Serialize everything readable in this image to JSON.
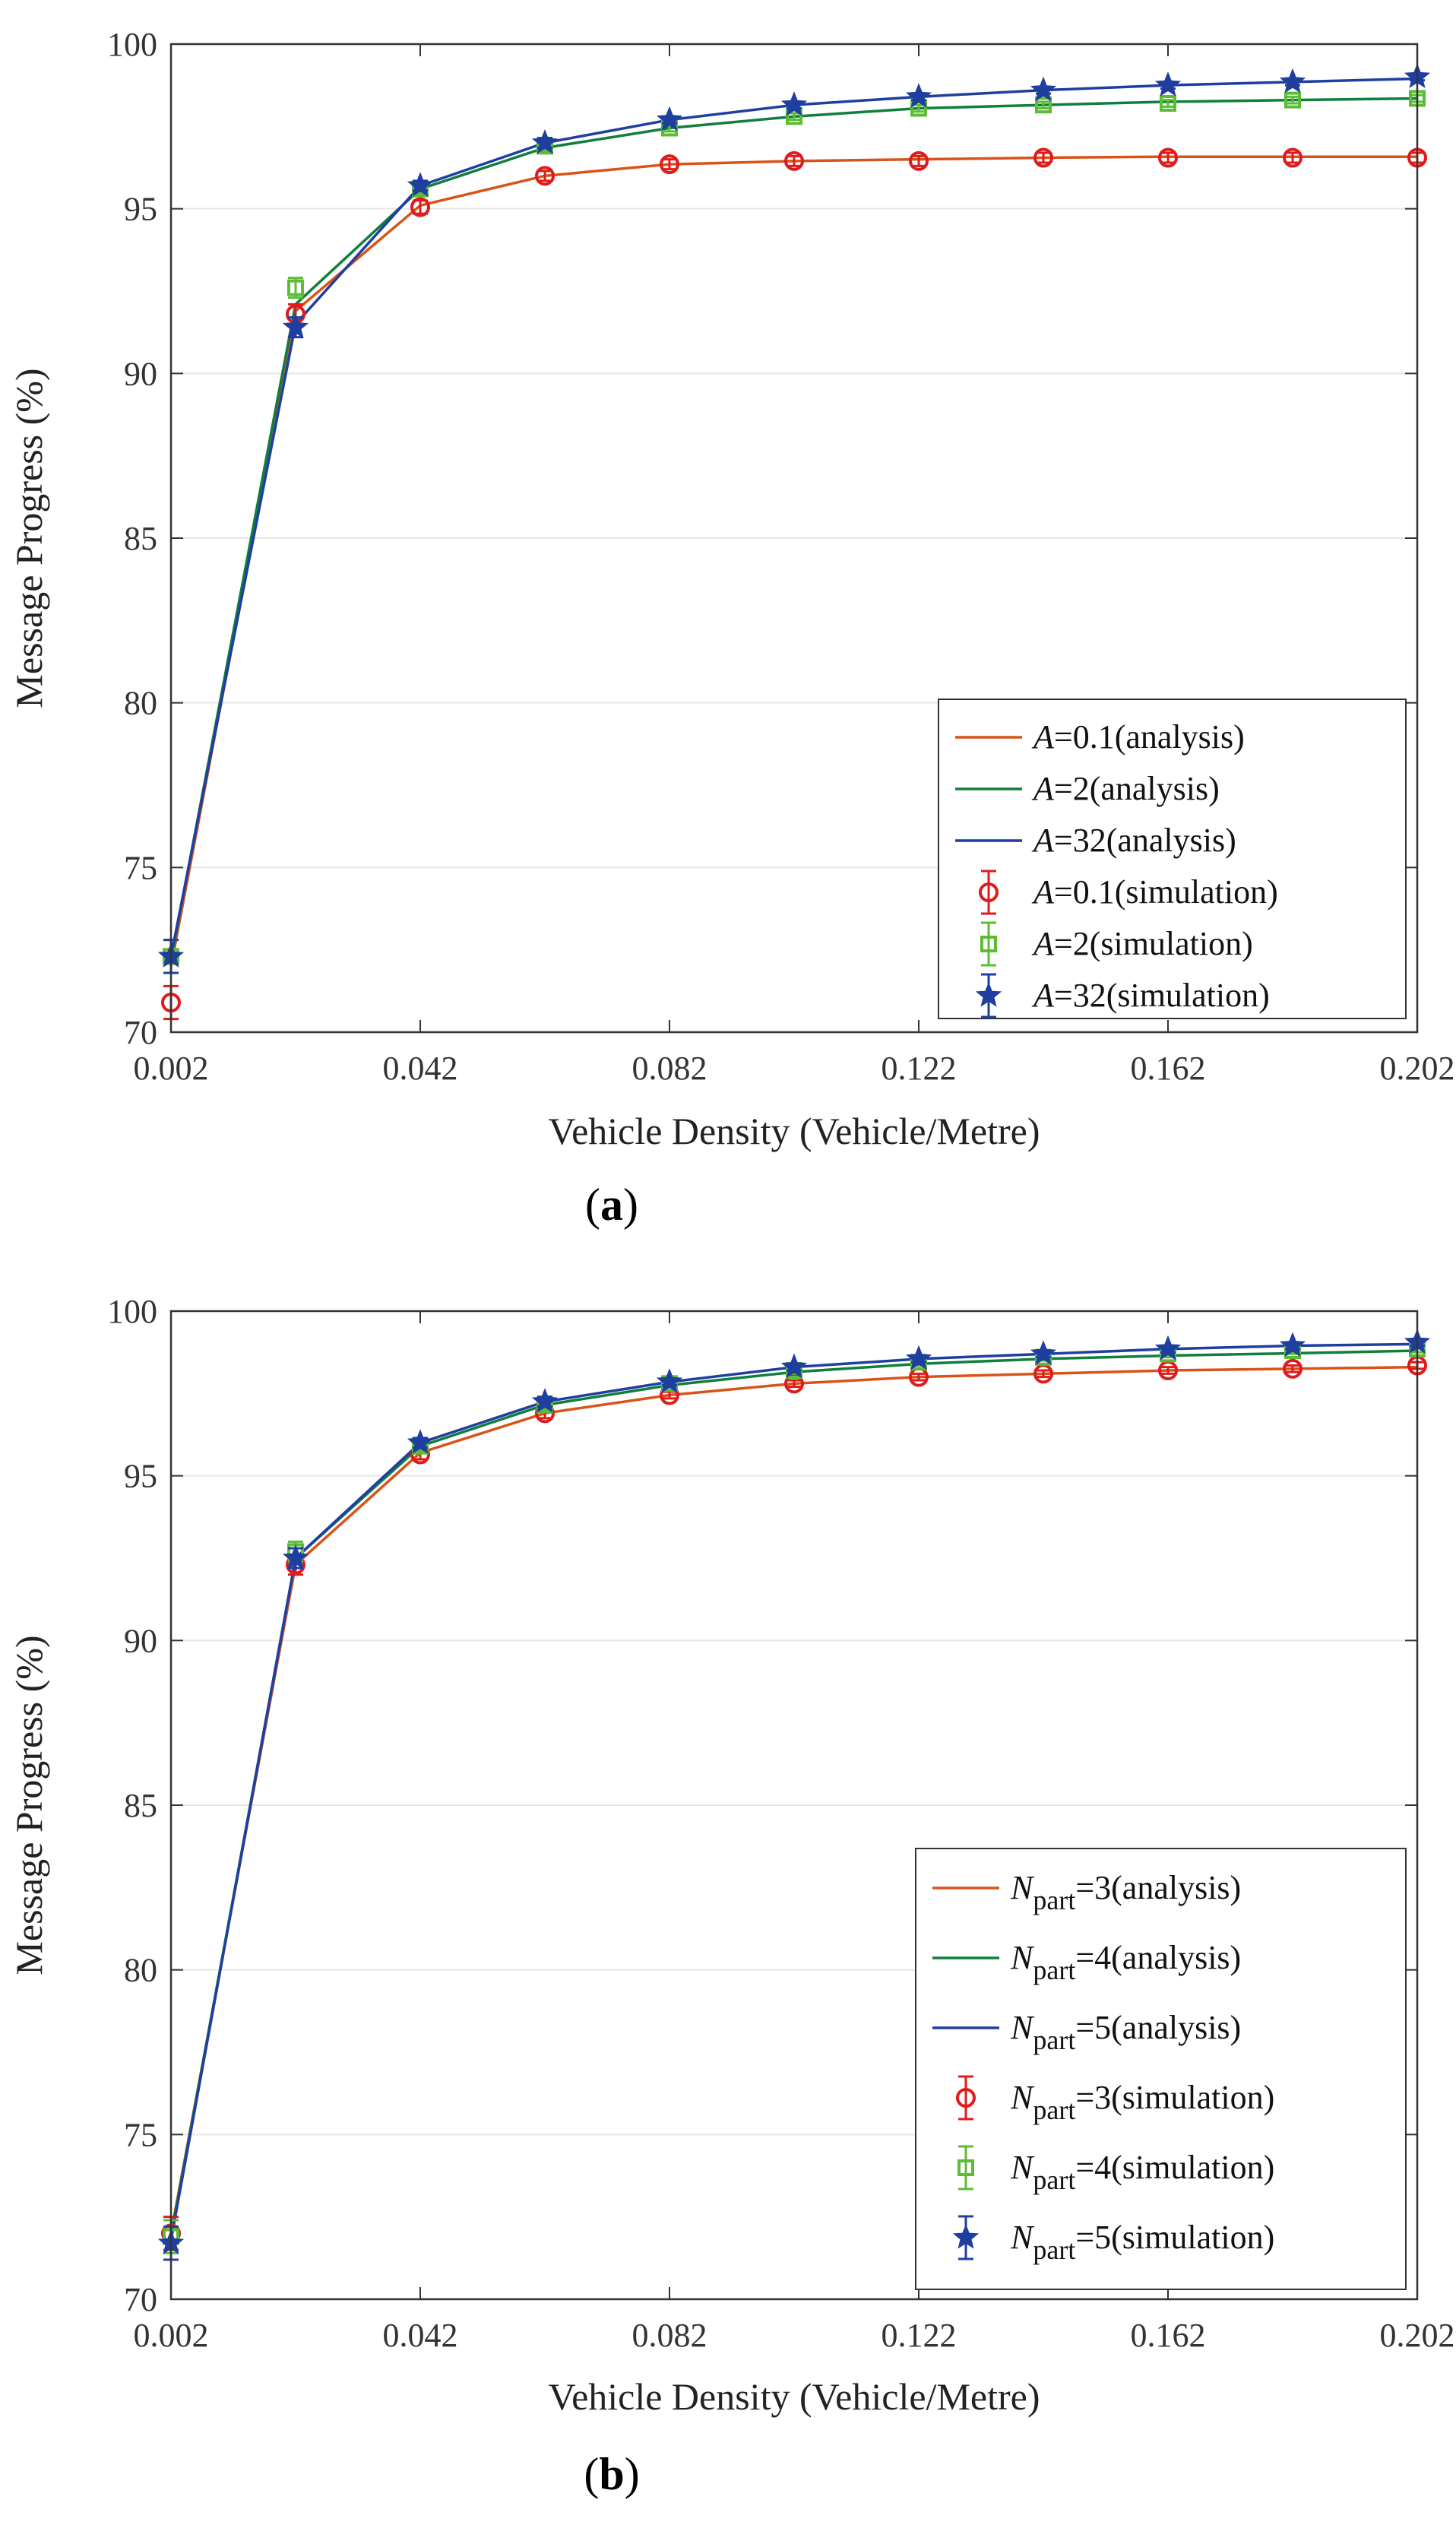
{
  "chart_data": [
    {
      "type": "line",
      "subfigure_label": "(a)",
      "subfigure_letter": "a",
      "xlabel": "Vehicle Density (Vehicle/Metre)",
      "ylabel": "Message Progress (%)",
      "xlim": [
        0.002,
        0.202
      ],
      "ylim": [
        70,
        100
      ],
      "x_ticks": [
        "0.002",
        "0.042",
        "0.082",
        "0.122",
        "0.162",
        "0.202"
      ],
      "x_tick_values": [
        0.002,
        0.042,
        0.082,
        0.122,
        0.162,
        0.202
      ],
      "y_ticks": [
        "70",
        "75",
        "80",
        "85",
        "90",
        "95",
        "100"
      ],
      "y_tick_values": [
        70,
        75,
        80,
        85,
        90,
        95,
        100
      ],
      "grid": "horizontal",
      "legend_position": "bottom-right",
      "x": [
        0.002,
        0.022,
        0.042,
        0.062,
        0.082,
        0.102,
        0.122,
        0.142,
        0.162,
        0.182,
        0.202
      ],
      "series": [
        {
          "name": "A=0.1(analysis)",
          "var": "A",
          "rest": "=0.1(analysis)",
          "kind": "analysis",
          "color": "#d95319",
          "values": [
            72.0,
            91.9,
            95.1,
            96.0,
            96.35,
            96.45,
            96.5,
            96.55,
            96.58,
            96.58,
            96.58
          ]
        },
        {
          "name": "A=2(analysis)",
          "var": "A",
          "rest": "=2(analysis)",
          "kind": "analysis",
          "color": "#0f7f3c",
          "values": [
            72.2,
            92.1,
            95.6,
            96.85,
            97.45,
            97.8,
            98.05,
            98.15,
            98.25,
            98.3,
            98.35
          ]
        },
        {
          "name": "A=32(analysis)",
          "var": "A",
          "rest": "=32(analysis)",
          "kind": "analysis",
          "color": "#1f3fa0",
          "values": [
            72.3,
            91.5,
            95.7,
            97.0,
            97.7,
            98.15,
            98.4,
            98.6,
            98.75,
            98.85,
            98.95
          ]
        },
        {
          "name": "A=0.1(simulation)",
          "var": "A",
          "rest": "=0.1(simulation)",
          "kind": "simulation",
          "marker": "circle",
          "color": "#e01b1b",
          "values": [
            70.9,
            91.8,
            95.05,
            96.0,
            96.35,
            96.45,
            96.45,
            96.55,
            96.55,
            96.55,
            96.55
          ],
          "errors": [
            0.5,
            0.3,
            0.2,
            0.15,
            0.15,
            0.15,
            0.15,
            0.15,
            0.15,
            0.15,
            0.15
          ]
        },
        {
          "name": "A=2(simulation)",
          "var": "A",
          "rest": "=2(simulation)",
          "kind": "simulation",
          "marker": "square",
          "color": "#5cbd34",
          "values": [
            72.3,
            92.6,
            95.6,
            96.9,
            97.45,
            97.8,
            98.05,
            98.15,
            98.2,
            98.3,
            98.35
          ],
          "errors": [
            0.5,
            0.3,
            0.15,
            0.15,
            0.1,
            0.1,
            0.1,
            0.1,
            0.1,
            0.1,
            0.1
          ]
        },
        {
          "name": "A=32(simulation)",
          "var": "A",
          "rest": "=32(simulation)",
          "kind": "simulation",
          "marker": "star",
          "color": "#1f3fa0",
          "values": [
            72.3,
            91.4,
            95.7,
            97.0,
            97.7,
            98.15,
            98.4,
            98.6,
            98.75,
            98.85,
            99.0
          ],
          "errors": [
            0.5,
            0.3,
            0.15,
            0.15,
            0.1,
            0.1,
            0.1,
            0.1,
            0.1,
            0.1,
            0.1
          ]
        }
      ]
    },
    {
      "type": "line",
      "subfigure_label": "(b)",
      "subfigure_letter": "b",
      "xlabel": "Vehicle Density (Vehicle/Metre)",
      "ylabel": "Message Progress (%)",
      "xlim": [
        0.002,
        0.202
      ],
      "ylim": [
        70,
        100
      ],
      "x_ticks": [
        "0.002",
        "0.042",
        "0.082",
        "0.122",
        "0.162",
        "0.202"
      ],
      "x_tick_values": [
        0.002,
        0.042,
        0.082,
        0.122,
        0.162,
        0.202
      ],
      "y_ticks": [
        "70",
        "75",
        "80",
        "85",
        "90",
        "95",
        "100"
      ],
      "y_tick_values": [
        70,
        75,
        80,
        85,
        90,
        95,
        100
      ],
      "grid": "horizontal",
      "legend_position": "bottom-right",
      "x": [
        0.002,
        0.022,
        0.042,
        0.062,
        0.082,
        0.102,
        0.122,
        0.142,
        0.162,
        0.182,
        0.202
      ],
      "series": [
        {
          "name": "Npart=3(analysis)",
          "var": "N",
          "sub": "part",
          "rest": "=3(analysis)",
          "kind": "analysis",
          "color": "#d95319",
          "values": [
            72.0,
            92.3,
            95.7,
            96.9,
            97.45,
            97.8,
            98.0,
            98.1,
            98.2,
            98.25,
            98.3
          ]
        },
        {
          "name": "Npart=4(analysis)",
          "var": "N",
          "sub": "part",
          "rest": "=4(analysis)",
          "kind": "analysis",
          "color": "#0f7f3c",
          "values": [
            71.9,
            92.5,
            95.9,
            97.15,
            97.75,
            98.15,
            98.4,
            98.55,
            98.65,
            98.72,
            98.8
          ]
        },
        {
          "name": "Npart=5(analysis)",
          "var": "N",
          "sub": "part",
          "rest": "=5(analysis)",
          "kind": "analysis",
          "color": "#1f3fa0",
          "values": [
            71.8,
            92.5,
            96.0,
            97.25,
            97.85,
            98.3,
            98.55,
            98.7,
            98.85,
            98.95,
            99.0
          ]
        },
        {
          "name": "Npart=3(simulation)",
          "var": "N",
          "sub": "part",
          "rest": "=3(simulation)",
          "kind": "simulation",
          "marker": "circle",
          "color": "#e01b1b",
          "values": [
            72.0,
            92.3,
            95.65,
            96.9,
            97.45,
            97.8,
            98.0,
            98.1,
            98.2,
            98.25,
            98.35
          ],
          "errors": [
            0.5,
            0.3,
            0.15,
            0.15,
            0.1,
            0.1,
            0.1,
            0.1,
            0.1,
            0.1,
            0.1
          ]
        },
        {
          "name": "Npart=4(simulation)",
          "var": "N",
          "sub": "part",
          "rest": "=4(simulation)",
          "kind": "simulation",
          "marker": "square",
          "color": "#5cbd34",
          "values": [
            71.9,
            92.7,
            95.9,
            97.15,
            97.8,
            98.2,
            98.45,
            98.6,
            98.7,
            98.8,
            98.85
          ],
          "errors": [
            0.5,
            0.3,
            0.15,
            0.15,
            0.1,
            0.1,
            0.1,
            0.1,
            0.1,
            0.1,
            0.1
          ]
        },
        {
          "name": "Npart=5(simulation)",
          "var": "N",
          "sub": "part",
          "rest": "=5(simulation)",
          "kind": "simulation",
          "marker": "star",
          "color": "#1f3fa0",
          "values": [
            71.7,
            92.5,
            96.0,
            97.25,
            97.85,
            98.3,
            98.55,
            98.7,
            98.85,
            98.95,
            99.05
          ],
          "errors": [
            0.5,
            0.3,
            0.15,
            0.15,
            0.1,
            0.1,
            0.1,
            0.1,
            0.1,
            0.1,
            0.1
          ]
        }
      ]
    }
  ]
}
